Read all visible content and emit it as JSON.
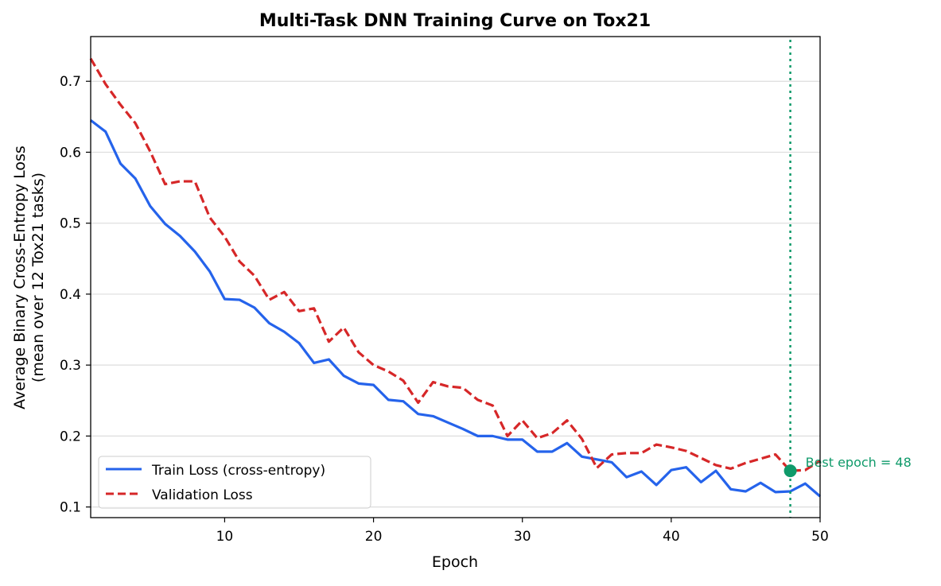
{
  "chart_data": {
    "type": "line",
    "title": "Multi-Task DNN Training Curve on Tox21",
    "xlabel": "Epoch",
    "ylabel": "Average Binary Cross-Entropy Loss",
    "ylabel_sub": "(mean over 12 Tox21 tasks)",
    "xlim": [
      1,
      50
    ],
    "ylim": [
      0.085,
      0.763
    ],
    "xticks": [
      10,
      20,
      30,
      40,
      50
    ],
    "yticks": [
      0.1,
      0.2,
      0.3,
      0.4,
      0.5,
      0.6,
      0.7
    ],
    "ytick_labels": [
      "0.1",
      "0.2",
      "0.3",
      "0.4",
      "0.5",
      "0.6",
      "0.7"
    ],
    "grid": "horizontal",
    "legend_position": "lower-left",
    "x": [
      1,
      2,
      3,
      4,
      5,
      6,
      7,
      8,
      9,
      10,
      11,
      12,
      13,
      14,
      15,
      16,
      17,
      18,
      19,
      20,
      21,
      22,
      23,
      24,
      25,
      26,
      27,
      28,
      29,
      30,
      31,
      32,
      33,
      34,
      35,
      36,
      37,
      38,
      39,
      40,
      41,
      42,
      43,
      44,
      45,
      46,
      47,
      48,
      49,
      50
    ],
    "series": [
      {
        "name": "Train Loss (cross-entropy)",
        "color": "#2563eb",
        "style": "solid",
        "values": [
          0.645,
          0.629,
          0.584,
          0.563,
          0.524,
          0.499,
          0.482,
          0.46,
          0.432,
          0.393,
          0.392,
          0.381,
          0.359,
          0.347,
          0.331,
          0.303,
          0.308,
          0.285,
          0.274,
          0.272,
          0.251,
          0.249,
          0.231,
          0.228,
          0.219,
          0.21,
          0.2,
          0.2,
          0.195,
          0.195,
          0.178,
          0.178,
          0.19,
          0.171,
          0.167,
          0.163,
          0.142,
          0.15,
          0.131,
          0.152,
          0.156,
          0.135,
          0.151,
          0.125,
          0.122,
          0.134,
          0.121,
          0.122,
          0.133,
          0.115
        ]
      },
      {
        "name": "Validation Loss",
        "color": "#d62728",
        "style": "dashed",
        "values": [
          0.732,
          0.696,
          0.667,
          0.641,
          0.601,
          0.555,
          0.559,
          0.559,
          0.508,
          0.481,
          0.446,
          0.426,
          0.392,
          0.403,
          0.376,
          0.38,
          0.333,
          0.353,
          0.318,
          0.3,
          0.291,
          0.278,
          0.247,
          0.276,
          0.27,
          0.268,
          0.251,
          0.243,
          0.2,
          0.222,
          0.197,
          0.204,
          0.222,
          0.196,
          0.155,
          0.174,
          0.176,
          0.176,
          0.188,
          0.184,
          0.179,
          0.169,
          0.159,
          0.154,
          0.162,
          0.168,
          0.174,
          0.151,
          0.152,
          0.165
        ]
      }
    ],
    "best_epoch": {
      "epoch": 48,
      "value": 0.151,
      "label": "Best epoch = 48",
      "color": "#0f9a6a"
    }
  }
}
